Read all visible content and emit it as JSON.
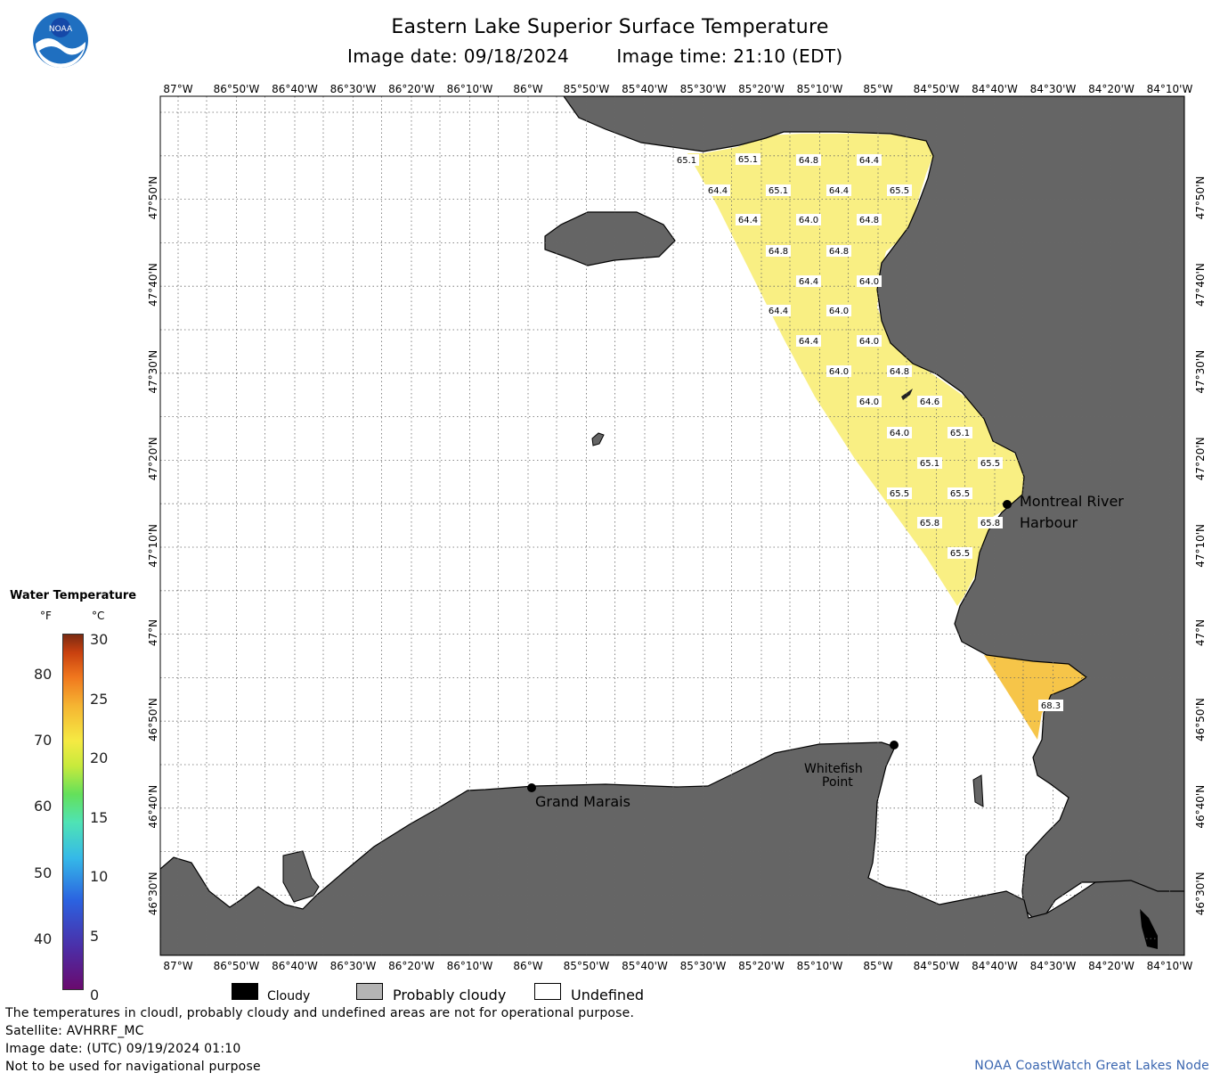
{
  "header": {
    "title": "Eastern Lake Superior Surface Temperature",
    "image_date": "Image date: 09/18/2024",
    "image_time": "Image time: 21:10 (EDT)"
  },
  "logo": {
    "text": "NOAA",
    "icon": "noaa-logo-icon"
  },
  "map": {
    "longitude_labels": [
      "87°W",
      "86°50'W",
      "86°40'W",
      "86°30'W",
      "86°20'W",
      "86°10'W",
      "86°W",
      "85°50'W",
      "85°40'W",
      "85°30'W",
      "85°20'W",
      "85°10'W",
      "85°W",
      "84°50'W",
      "84°40'W",
      "84°30'W",
      "84°20'W",
      "84°10'W"
    ],
    "latitude_labels": [
      "47°50'N",
      "47°40'N",
      "47°30'N",
      "47°20'N",
      "47°10'N",
      "47°N",
      "46°50'N",
      "46°40'N",
      "46°30'N"
    ],
    "places": {
      "montreal_river_line1": "Montreal River",
      "montreal_river_line2": "Harbour",
      "whitefish_line1": "Whitefish",
      "whitefish_line2": "Point",
      "grand_marais": "Grand Marais"
    },
    "temperature_labels": [
      "65.1",
      "65.1",
      "64.8",
      "64.4",
      "64.4",
      "65.1",
      "64.4",
      "65.5",
      "64.4",
      "64.0",
      "64.8",
      "64.8",
      "64.8",
      "64.4",
      "64.0",
      "64.4",
      "64.0",
      "64.4",
      "64.0",
      "64.0",
      "64.8",
      "64.0",
      "64.6",
      "64.0",
      "65.1",
      "65.1",
      "65.5",
      "65.5",
      "65.5",
      "65.8",
      "65.8",
      "65.5",
      "68.3"
    ],
    "colors": {
      "land": "#656565",
      "undefined": "#ffffff",
      "warm_water": "#f9ef83",
      "warmer_water": "#f6c549"
    }
  },
  "legend": {
    "title": "Water Temperature",
    "unit_f": "°F",
    "unit_c": "°C",
    "fahrenheit_values": [
      "80",
      "70",
      "60",
      "50",
      "40"
    ],
    "celsius_values": [
      "30",
      "25",
      "20",
      "15",
      "10",
      "5",
      "0"
    ],
    "keys": {
      "cloudy": "Cloudy",
      "probably_cloudy": "Probably cloudy",
      "undefined": "Undefined"
    },
    "key_colors": {
      "cloudy": "#000000",
      "probably_cloudy": "#b4b4b4",
      "undefined": "#ffffff"
    }
  },
  "footer": {
    "line1": "The temperatures in cloudl, probably cloudy and undefined areas are not for operational purpose.",
    "line2": "Satellite: AVHRRF_MC",
    "line3": "Image date: (UTC) 09/19/2024  01:10",
    "line4": "Not to be used for navigational purpose",
    "credit": "NOAA CoastWatch Great Lakes Node"
  }
}
